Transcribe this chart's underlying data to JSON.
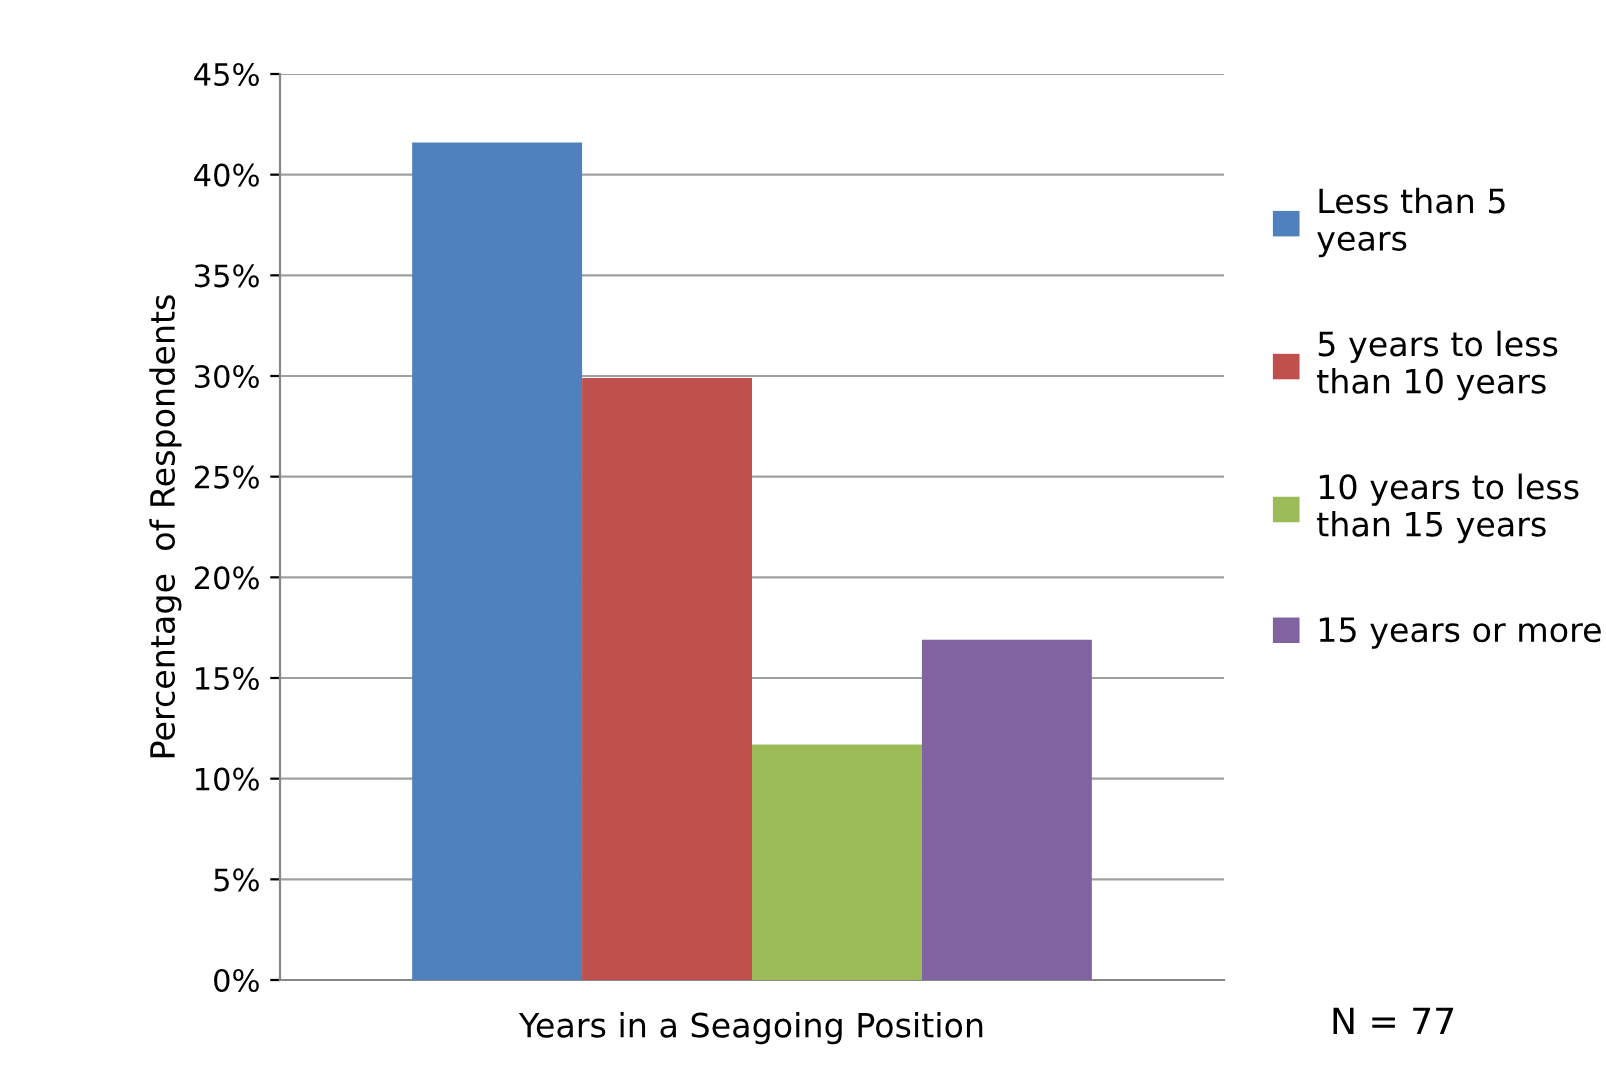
{
  "chart_data": {
    "type": "bar",
    "xlabel": "Years in a Seagoing Position",
    "ylabel": "Percentage  of Respondents",
    "categories": [
      null
    ],
    "series": [
      {
        "name": "Less than 5 years",
        "color": "#4f81bd",
        "values": [
          41.6
        ]
      },
      {
        "name": "5 years to less than 10 years",
        "color": "#c0504d",
        "values": [
          29.9
        ]
      },
      {
        "name": "10 years to less than 15 years",
        "color": "#9bbb59",
        "values": [
          11.7
        ]
      },
      {
        "name": "15 years or more",
        "color": "#8064a2",
        "values": [
          16.9
        ]
      }
    ],
    "ylim": [
      0,
      45
    ],
    "yticks": [
      {
        "value": 0,
        "label": "0%"
      },
      {
        "value": 5,
        "label": "5%"
      },
      {
        "value": 10,
        "label": "10%"
      },
      {
        "value": 15,
        "label": "15%"
      },
      {
        "value": 20,
        "label": "20%"
      },
      {
        "value": 25,
        "label": "25%"
      },
      {
        "value": 30,
        "label": "30%"
      },
      {
        "value": 35,
        "label": "35%"
      },
      {
        "value": 40,
        "label": "40%"
      },
      {
        "value": 45,
        "label": "45%"
      }
    ],
    "grid": "y",
    "legend": "right",
    "annotations": [
      "N = 77"
    ]
  }
}
